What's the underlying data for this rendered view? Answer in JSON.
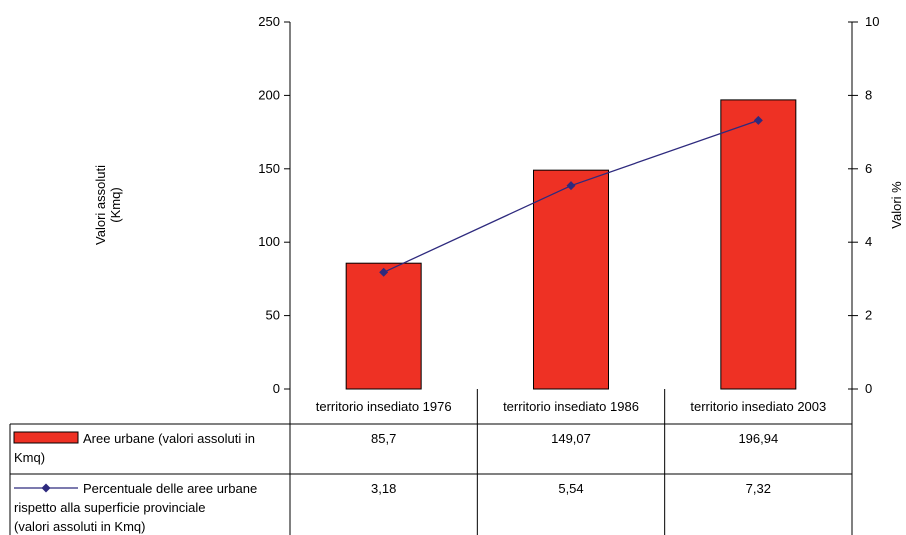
{
  "chart_data": {
    "type": "bar",
    "categories": [
      "territorio insediato 1976",
      "territorio insediato 1986",
      "territorio insediato 2003"
    ],
    "series": [
      {
        "name": "Aree urbane  (valori assoluti in Kmq)",
        "type": "bar",
        "axis": "left",
        "values": [
          85.7,
          149.07,
          196.94
        ],
        "value_labels": [
          "85,7",
          "149,07",
          "196,94"
        ],
        "color": "#ee3124"
      },
      {
        "name": "Percentuale delle aree urbane rispetto alla superficie provinciale (valori assoluti in Kmq)",
        "type": "line",
        "axis": "right",
        "values": [
          3.18,
          5.54,
          7.32
        ],
        "value_labels": [
          "3,18",
          "5,54",
          "7,32"
        ],
        "color": "#2e2a7e"
      }
    ],
    "ylabel": "Valori assoluti (Kmq)",
    "ylabel_lines": [
      "Valori assoluti",
      "(Kmq)"
    ],
    "y2label": "Valori %",
    "ylim": [
      0,
      250
    ],
    "y2lim": [
      0,
      10
    ],
    "yticks": [
      0,
      50,
      100,
      150,
      200,
      250
    ],
    "y2ticks": [
      0,
      2,
      4,
      6,
      8,
      10
    ],
    "grid": false,
    "legend": "data-table"
  }
}
